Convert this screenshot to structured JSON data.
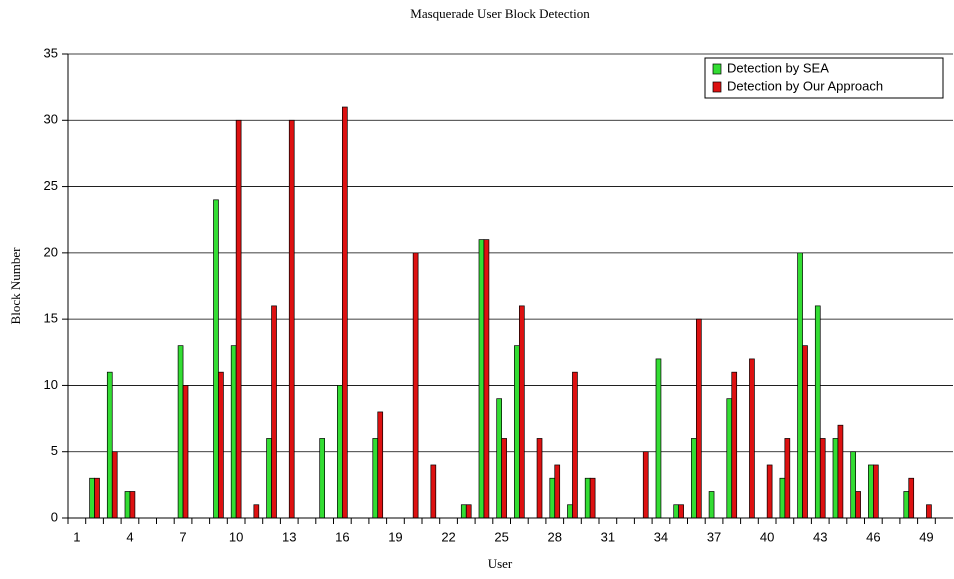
{
  "chart_data": {
    "type": "bar",
    "title": "Masquerade User Block Detection",
    "xlabel": "User",
    "ylabel": "Block Number",
    "categories": [
      "1",
      null,
      null,
      "4",
      null,
      null,
      "7",
      null,
      null,
      "10",
      null,
      null,
      "13",
      null,
      null,
      "16",
      null,
      null,
      "19",
      null,
      null,
      "22",
      null,
      null,
      "25",
      null,
      null,
      "28",
      null,
      null,
      "31",
      null,
      null,
      "34",
      null,
      null,
      "37",
      null,
      null,
      "40",
      null,
      null,
      "43",
      null,
      null,
      "46",
      null,
      null,
      "49",
      null
    ],
    "series": [
      {
        "name": "Detection by SEA",
        "color": "#33dd33",
        "values": [
          0,
          3,
          11,
          2,
          0,
          0,
          13,
          0,
          24,
          13,
          0,
          6,
          0,
          0,
          6,
          10,
          0,
          6,
          0,
          0,
          0,
          0,
          1,
          21,
          9,
          13,
          0,
          3,
          1,
          3,
          0,
          0,
          0,
          12,
          1,
          6,
          2,
          9,
          0,
          0,
          3,
          20,
          16,
          6,
          5,
          4,
          0,
          2,
          0,
          0
        ]
      },
      {
        "name": "Detection by Our Approach",
        "color": "#dd1111",
        "values": [
          0,
          3,
          5,
          2,
          0,
          0,
          10,
          0,
          11,
          30,
          1,
          16,
          30,
          0,
          0,
          31,
          0,
          8,
          0,
          20,
          4,
          0,
          1,
          21,
          6,
          16,
          6,
          4,
          11,
          3,
          0,
          0,
          5,
          0,
          1,
          15,
          0,
          11,
          12,
          4,
          6,
          13,
          6,
          7,
          2,
          4,
          0,
          3,
          1,
          0
        ]
      }
    ],
    "ylim": [
      0,
      35
    ],
    "yticks": [
      0,
      5,
      10,
      15,
      20,
      25,
      30,
      35
    ],
    "grid": true,
    "legend": "upper right"
  }
}
